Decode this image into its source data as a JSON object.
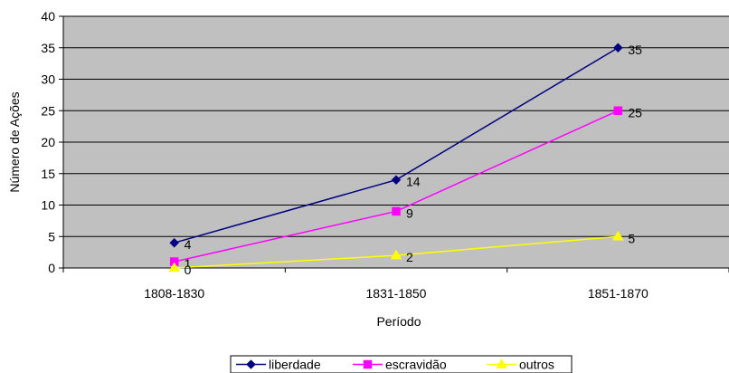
{
  "chart_data": {
    "type": "line",
    "title": "",
    "xlabel": "Período",
    "ylabel": "Número de Ações",
    "categories": [
      "1808-1830",
      "1831-1850",
      "1851-1870"
    ],
    "ylim": [
      0,
      40
    ],
    "yticks": [
      0,
      5,
      10,
      15,
      20,
      25,
      30,
      35,
      40
    ],
    "grid": true,
    "plot_background": "#c0c0c0",
    "legend_position": "bottom",
    "series": [
      {
        "name": "liberdade",
        "values": [
          4,
          14,
          35
        ],
        "color": "#000080",
        "marker": "diamond",
        "data_labels": [
          "4",
          "14",
          "35"
        ]
      },
      {
        "name": "escravidão",
        "values": [
          1,
          9,
          25
        ],
        "color": "#ff00ff",
        "marker": "square",
        "data_labels": [
          "1",
          "9",
          "25"
        ]
      },
      {
        "name": "outros",
        "values": [
          0,
          2,
          5
        ],
        "color": "#ffff00",
        "marker": "triangle",
        "data_labels": [
          "0",
          "2",
          "5"
        ]
      }
    ]
  }
}
